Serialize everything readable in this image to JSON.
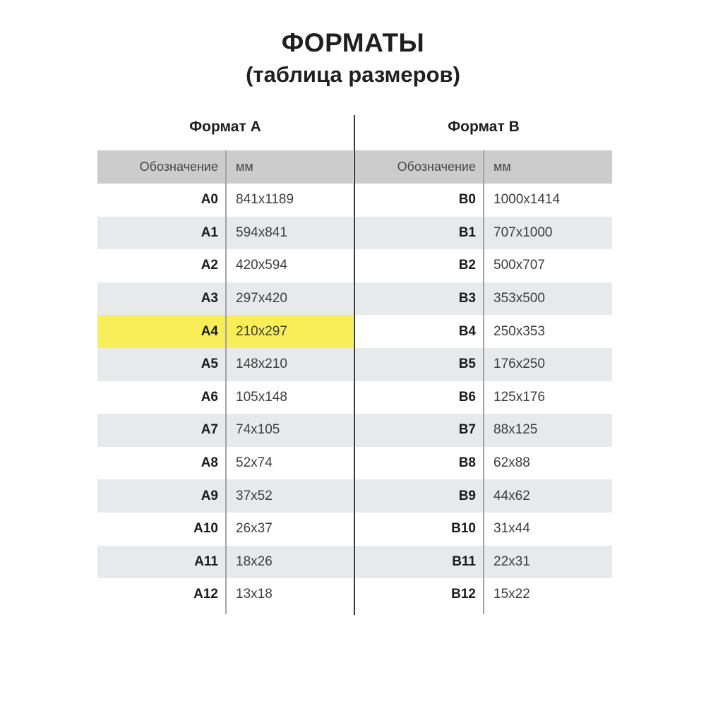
{
  "title": "ФОРМАТЫ",
  "subtitle": "(таблица размеров)",
  "colors": {
    "highlight_yellow": "#f8ef58",
    "header_row_gray": "#cccccc",
    "alt_row_gray": "#e8e9ea",
    "column_divider_gray": "#a3a3a3",
    "center_line_dark": "#3a3a3a",
    "label_text": "#1b1b1b",
    "value_text": "#3e3e3e"
  },
  "tables": [
    {
      "name": "Формат А",
      "columns": {
        "designation": "Обозначение",
        "mm": "мм"
      },
      "rows": [
        {
          "label": "A0",
          "size": "841x1189"
        },
        {
          "label": "A1",
          "size": "594x841"
        },
        {
          "label": "A2",
          "size": "420x594"
        },
        {
          "label": "A3",
          "size": "297x420"
        },
        {
          "label": "A4",
          "size": "210x297",
          "highlight": true
        },
        {
          "label": "A5",
          "size": "148x210"
        },
        {
          "label": "A6",
          "size": "105x148"
        },
        {
          "label": "A7",
          "size": "74x105"
        },
        {
          "label": "A8",
          "size": "52x74"
        },
        {
          "label": "A9",
          "size": "37x52"
        },
        {
          "label": "A10",
          "size": "26x37"
        },
        {
          "label": "A11",
          "size": "18x26"
        },
        {
          "label": "A12",
          "size": "13x18"
        }
      ]
    },
    {
      "name": "Формат В",
      "columns": {
        "designation": "Обозначение",
        "mm": "мм"
      },
      "rows": [
        {
          "label": "B0",
          "size": "1000x1414"
        },
        {
          "label": "B1",
          "size": "707x1000"
        },
        {
          "label": "B2",
          "size": "500x707"
        },
        {
          "label": "B3",
          "size": "353x500"
        },
        {
          "label": "B4",
          "size": "250x353"
        },
        {
          "label": "B5",
          "size": "176x250"
        },
        {
          "label": "B6",
          "size": "125x176"
        },
        {
          "label": "B7",
          "size": "88x125"
        },
        {
          "label": "B8",
          "size": "62x88"
        },
        {
          "label": "B9",
          "size": "44x62"
        },
        {
          "label": "B10",
          "size": "31x44"
        },
        {
          "label": "B11",
          "size": "22x31"
        },
        {
          "label": "B12",
          "size": "15x22"
        }
      ]
    }
  ]
}
